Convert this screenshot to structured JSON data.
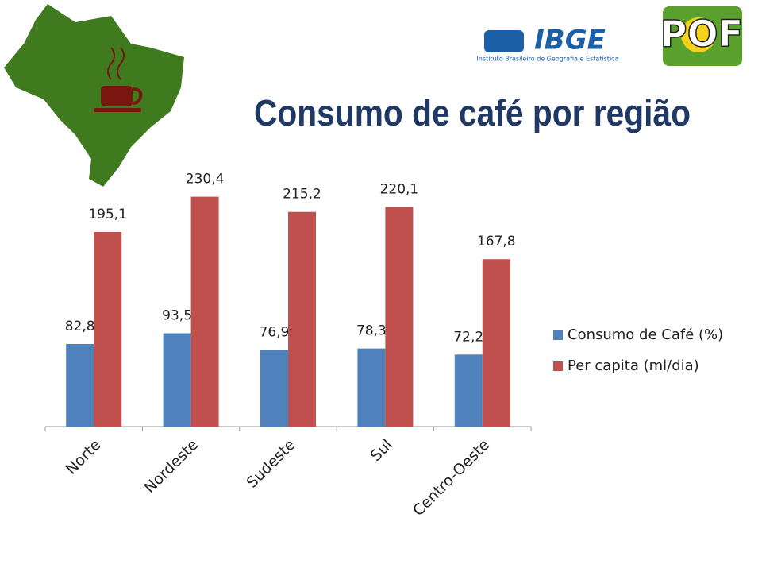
{
  "logos": {
    "ibge": "IBGE",
    "ibge_subtitle": "Instituto Brasileiro de Geografia e Estatística",
    "pof": "POF"
  },
  "chart_data": {
    "type": "bar",
    "title": "Consumo de café por região",
    "categories": [
      "Norte",
      "Nordeste",
      "Sudeste",
      "Sul",
      "Centro-Oeste"
    ],
    "series": [
      {
        "name": "Consumo de Café (%)",
        "color": "#4f81bd",
        "values": [
          82.8,
          93.5,
          76.9,
          78.3,
          72.2
        ],
        "value_labels": [
          "82,8",
          "93,5",
          "76,9",
          "78,3",
          "72,2"
        ]
      },
      {
        "name": "Per capita (ml/dia)",
        "color": "#c0504d",
        "values": [
          195.1,
          230.4,
          215.2,
          220.1,
          167.8
        ],
        "value_labels": [
          "195,1",
          "230,4",
          "215,2",
          "220,1",
          "167,8"
        ]
      }
    ],
    "ylim": [
      0,
      250
    ],
    "legend": "right"
  }
}
